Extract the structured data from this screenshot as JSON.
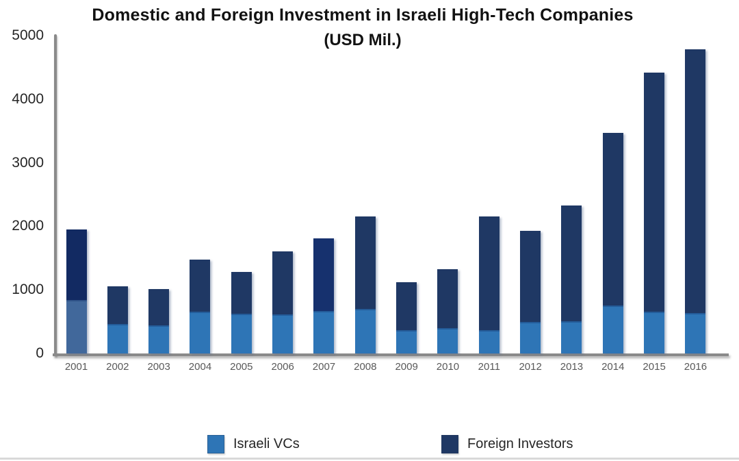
{
  "chart_data": {
    "type": "bar",
    "stacked": true,
    "title_line1": "Domestic and Foreign Investment in Israeli High-Tech Companies",
    "title_line2": "(USD Mil.)",
    "categories": [
      "2001",
      "2002",
      "2003",
      "2004",
      "2005",
      "2006",
      "2007",
      "2008",
      "2009",
      "2010",
      "2011",
      "2012",
      "2013",
      "2014",
      "2015",
      "2016"
    ],
    "series": [
      {
        "name": "Israeli VCs",
        "color": "#2E75B6",
        "values": [
          840,
          460,
          440,
          660,
          630,
          610,
          670,
          700,
          370,
          400,
          370,
          500,
          510,
          750,
          660,
          640
        ]
      },
      {
        "name": "Foreign Investors",
        "color": "#1F3864",
        "values": [
          1110,
          600,
          570,
          820,
          650,
          1000,
          1140,
          1450,
          750,
          930,
          1780,
          1430,
          1820,
          2720,
          3760,
          4140
        ]
      }
    ],
    "light_colors": [
      "#41689B",
      "#2E75B6",
      "#2E75B6",
      "#2E75B6",
      "#2E75B6",
      "#2E75B6",
      "#2E75B6",
      "#2E75B6",
      "#2E75B6",
      "#2E75B6",
      "#2E75B6",
      "#2E75B6",
      "#2E75B6",
      "#2E75B6",
      "#2E75B6",
      "#2E75B6"
    ],
    "dark_colors": [
      "#122A62",
      "#1F3864",
      "#1F3864",
      "#1F3864",
      "#1F3864",
      "#1F3864",
      "#16316E",
      "#1F3864",
      "#1F3864",
      "#1F3864",
      "#1F3864",
      "#1F3864",
      "#1F3864",
      "#1F3864",
      "#1F3864",
      "#1F3864"
    ],
    "y_ticks": [
      0,
      1000,
      2000,
      3000,
      4000,
      5000
    ],
    "ylim": [
      0,
      5000
    ],
    "xlabel": "",
    "ylabel": "",
    "gridlines": false,
    "axis_color": "#8a8a8a",
    "legend_position": "bottom",
    "legend": [
      {
        "label": "Israeli VCs",
        "color": "#2E75B6"
      },
      {
        "label": "Foreign Investors",
        "color": "#1F3864"
      }
    ]
  }
}
